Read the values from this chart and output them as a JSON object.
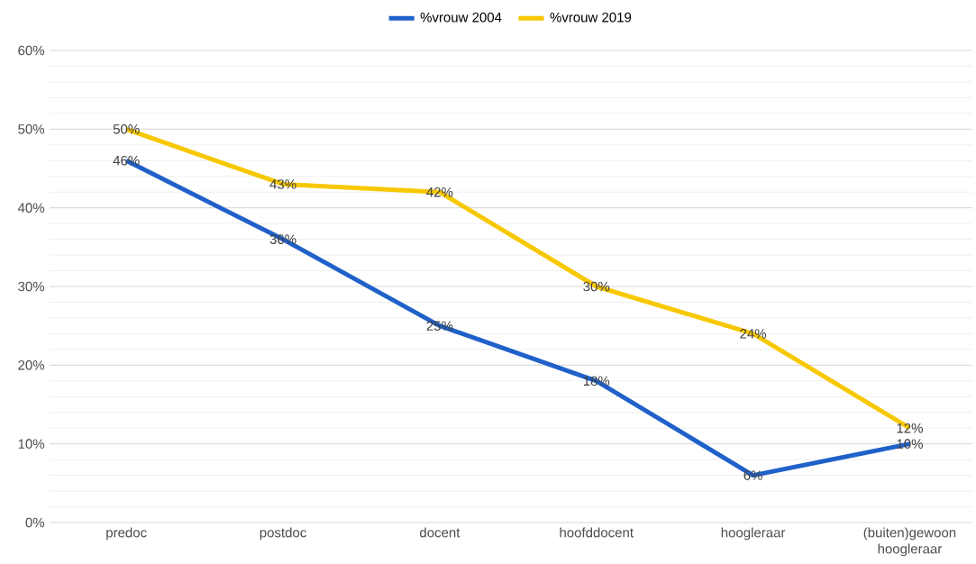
{
  "chart_data": {
    "type": "line",
    "categories": [
      "predoc",
      "postdoc",
      "docent",
      "hoofddocent",
      "hoogleraar",
      "(buiten)gewoon hoogleraar"
    ],
    "series": [
      {
        "name": "%vrouw 2004",
        "color": "#1f61c9",
        "values": [
          46,
          36,
          25,
          18,
          6,
          10
        ],
        "value_labels": [
          "46%",
          "36%",
          "25%",
          "18%",
          "6%",
          "10%"
        ]
      },
      {
        "name": "%vrouw 2019",
        "color": "#f7c800",
        "values": [
          50,
          43,
          42,
          30,
          24,
          12
        ],
        "value_labels": [
          "50%",
          "43%",
          "42%",
          "30%",
          "24%",
          "12%"
        ]
      }
    ],
    "ylim": [
      0,
      60
    ],
    "yticks": [
      {
        "value": 0,
        "label": "0%"
      },
      {
        "value": 10,
        "label": "10%"
      },
      {
        "value": 20,
        "label": "20%"
      },
      {
        "value": 30,
        "label": "30%"
      },
      {
        "value": 40,
        "label": "40%"
      },
      {
        "value": 50,
        "label": "50%"
      },
      {
        "value": 60,
        "label": "60%"
      }
    ],
    "grid": "y",
    "legend": "top",
    "marker": "none",
    "line_style": "solid"
  }
}
